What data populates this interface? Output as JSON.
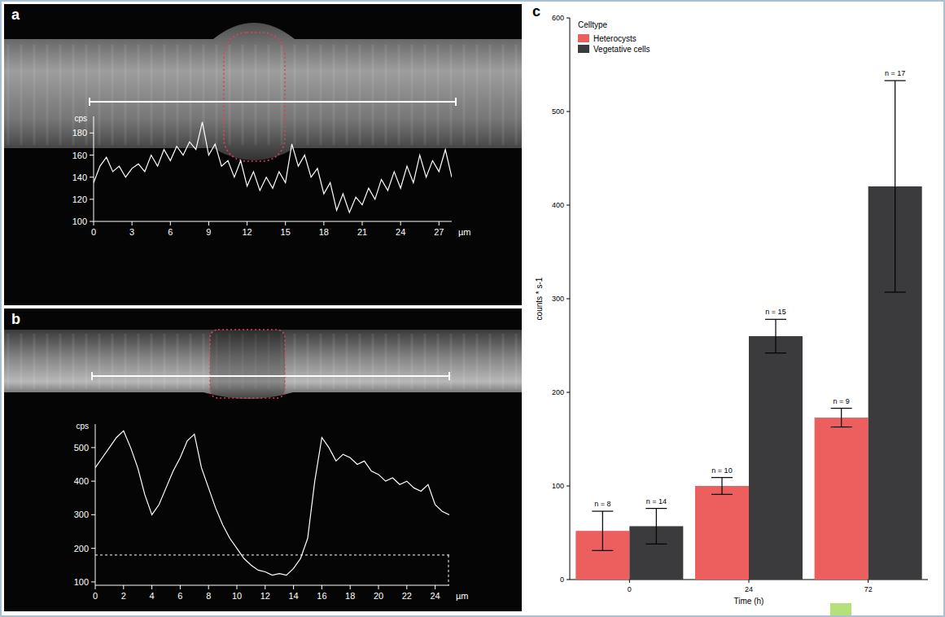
{
  "chart_data": [
    {
      "type": "line",
      "panel": "a",
      "x_label": "µm",
      "y_label": "cps",
      "color": "#ffffff",
      "xlim": [
        0,
        28
      ],
      "ylim": [
        100,
        195
      ],
      "xticks": [
        0,
        3,
        6,
        9,
        12,
        15,
        18,
        21,
        24,
        27
      ],
      "yticks": [
        100,
        120,
        140,
        160,
        180
      ],
      "x": [
        0,
        0.5,
        1,
        1.5,
        2,
        2.5,
        3,
        3.5,
        4,
        4.5,
        5,
        5.5,
        6,
        6.5,
        7,
        7.5,
        8,
        8.5,
        9,
        9.5,
        10,
        10.5,
        11,
        11.5,
        12,
        12.5,
        13,
        13.5,
        14,
        14.5,
        15,
        15.5,
        16,
        16.5,
        17,
        17.5,
        18,
        18.5,
        19,
        19.5,
        20,
        20.5,
        21,
        21.5,
        22,
        22.5,
        23,
        23.5,
        24,
        24.5,
        25,
        25.5,
        26,
        26.5,
        27,
        27.5,
        28
      ],
      "values": [
        135,
        150,
        158,
        145,
        150,
        140,
        148,
        152,
        145,
        160,
        150,
        165,
        155,
        168,
        160,
        172,
        165,
        190,
        160,
        170,
        150,
        155,
        140,
        155,
        132,
        145,
        128,
        140,
        130,
        145,
        135,
        170,
        150,
        160,
        140,
        148,
        125,
        135,
        110,
        125,
        108,
        122,
        115,
        130,
        120,
        138,
        128,
        145,
        130,
        150,
        135,
        160,
        140,
        155,
        145,
        165,
        140
      ]
    },
    {
      "type": "line",
      "panel": "b",
      "x_label": "µm",
      "y_label": "cps",
      "color": "#ffffff",
      "xlim": [
        0,
        25
      ],
      "ylim": [
        90,
        570
      ],
      "xticks": [
        0,
        2,
        4,
        6,
        8,
        10,
        12,
        14,
        16,
        18,
        20,
        22,
        24
      ],
      "yticks": [
        100,
        200,
        300,
        400,
        500
      ],
      "hline": 180,
      "x": [
        0,
        0.5,
        1,
        1.5,
        2,
        2.5,
        3,
        3.5,
        4,
        4.5,
        5,
        5.5,
        6,
        6.5,
        7,
        7.5,
        8,
        8.5,
        9,
        9.5,
        10,
        10.5,
        11,
        11.5,
        12,
        12.5,
        13,
        13.5,
        14,
        14.5,
        15,
        15.5,
        16,
        16.5,
        17,
        17.5,
        18,
        18.5,
        19,
        19.5,
        20,
        20.5,
        21,
        21.5,
        22,
        22.5,
        23,
        23.5,
        24,
        24.5,
        25
      ],
      "values": [
        440,
        470,
        500,
        530,
        550,
        500,
        440,
        360,
        300,
        330,
        380,
        430,
        470,
        520,
        540,
        440,
        380,
        320,
        270,
        230,
        200,
        170,
        150,
        135,
        130,
        120,
        125,
        120,
        140,
        170,
        230,
        400,
        530,
        500,
        460,
        480,
        470,
        450,
        460,
        430,
        420,
        400,
        410,
        390,
        400,
        380,
        370,
        390,
        330,
        310,
        300
      ]
    },
    {
      "type": "bar",
      "panel": "c",
      "x_label": "Time (h)",
      "y_label": "counts * s-1",
      "legend_title": "Celltype",
      "legend": "upper left",
      "categories": [
        "0",
        "24",
        "72"
      ],
      "ylim": [
        0,
        600
      ],
      "yticks": [
        0,
        100,
        200,
        300,
        400,
        500,
        600
      ],
      "series": [
        {
          "name": "Heterocysts",
          "color": "#ec5f5e",
          "values": [
            52,
            100,
            173
          ],
          "errors": [
            21,
            9,
            10
          ],
          "n_labels": [
            "n = 8",
            "n = 10",
            "n = 9"
          ]
        },
        {
          "name": "Vegetative cells",
          "color": "#3b3b3d",
          "values": [
            57,
            260,
            420
          ],
          "errors": [
            19,
            18,
            113
          ],
          "n_labels": [
            "n = 14",
            "n = 15",
            "n = 17"
          ]
        }
      ]
    }
  ]
}
